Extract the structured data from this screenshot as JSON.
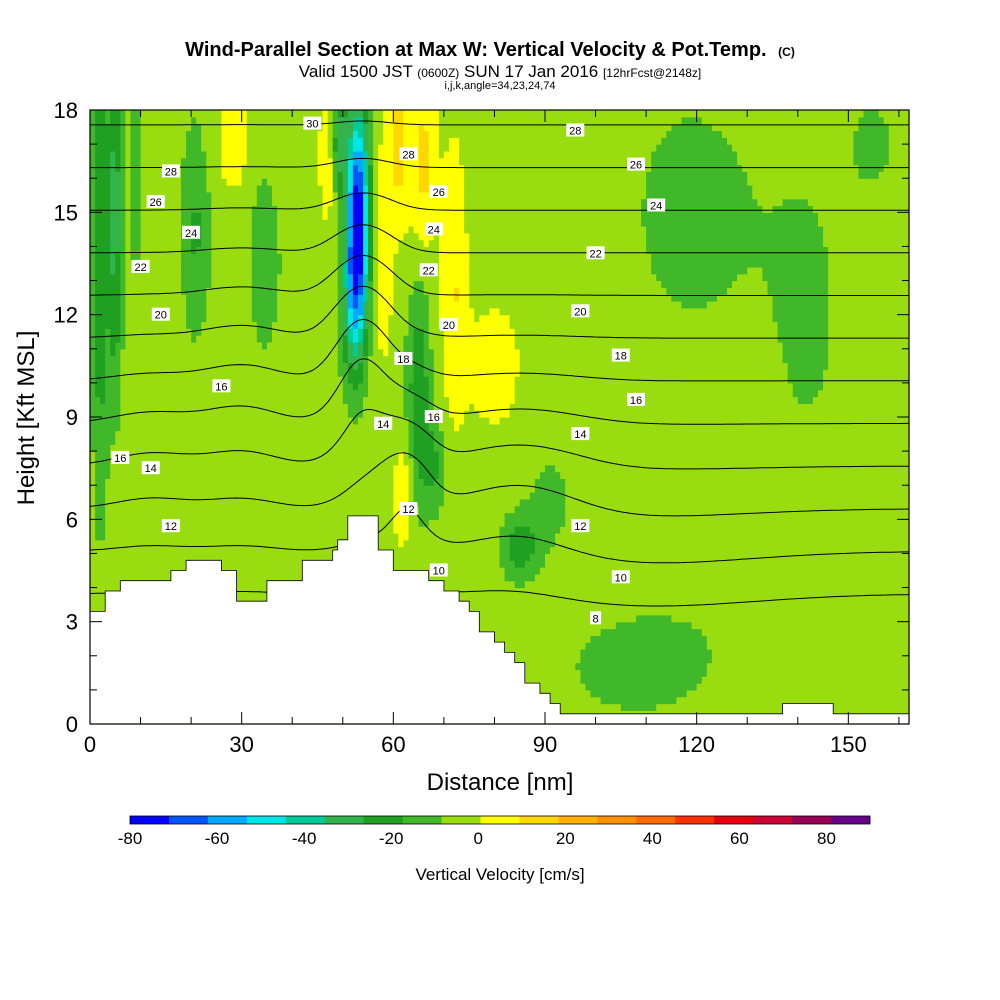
{
  "title": {
    "main": "Wind-Parallel Section at Max W: Vertical Velocity & Pot.Temp.",
    "unit": "(C)",
    "valid_a": "Valid 1500 JST",
    "valid_b": "(0600Z)",
    "valid_c": "SUN 17 Jan 2016",
    "valid_d": "[12hrFcst@2148z]",
    "indices": "i,j,k,angle=34,23,24,74"
  },
  "colors": {
    "background": "#ffffff",
    "terrain": "#ffffff",
    "contour": "#000000",
    "frame": "#000000"
  },
  "chart_data": {
    "type": "heatmap",
    "xlabel": "Distance [nm]",
    "ylabel": "Height [Kft MSL]",
    "xlim": [
      0,
      162
    ],
    "ylim": [
      0,
      18
    ],
    "xticks": [
      0,
      30,
      60,
      90,
      120,
      150
    ],
    "xtick_labels": [
      "0",
      "30",
      "60",
      "90",
      "120",
      "150"
    ],
    "yticks": [
      0,
      3,
      6,
      9,
      12,
      15,
      18
    ],
    "ytick_labels": [
      "0",
      "3",
      "6",
      "9",
      "12",
      "15",
      "18"
    ],
    "colorbar": {
      "label": "Vertical Velocity [cm/s]",
      "min": -80,
      "max": 90,
      "step": 10,
      "tick_values": [
        -80,
        -60,
        -40,
        -20,
        0,
        20,
        40,
        60,
        80
      ],
      "tick_labels": [
        "-80",
        "-60",
        "-40",
        "-20",
        "0",
        "20",
        "40",
        "60",
        "80"
      ],
      "colors": [
        "#0000ff",
        "#0055ff",
        "#00aaff",
        "#00e5e5",
        "#00cc99",
        "#33b34d",
        "#20a020",
        "#40b82a",
        "#99dd11",
        "#ffff00",
        "#ffd700",
        "#ffb000",
        "#ff9000",
        "#ff6a00",
        "#ff3000",
        "#e60010",
        "#cc0033",
        "#990055",
        "#660088"
      ]
    },
    "terrain_profile": [
      [
        0,
        3.3
      ],
      [
        3,
        3.9
      ],
      [
        6,
        4.2
      ],
      [
        16,
        4.5
      ],
      [
        19,
        4.8
      ],
      [
        26,
        4.5
      ],
      [
        29,
        3.6
      ],
      [
        35,
        4.2
      ],
      [
        42,
        4.8
      ],
      [
        48,
        5.1
      ],
      [
        49,
        5.4
      ],
      [
        51,
        6.1
      ],
      [
        55,
        6.1
      ],
      [
        57,
        5.1
      ],
      [
        60,
        4.5
      ],
      [
        67,
        4.2
      ],
      [
        70,
        3.9
      ],
      [
        73,
        3.6
      ],
      [
        75,
        3.3
      ],
      [
        77,
        2.7
      ],
      [
        80,
        2.4
      ],
      [
        82,
        2.1
      ],
      [
        84,
        1.8
      ],
      [
        86,
        1.2
      ],
      [
        89,
        0.9
      ],
      [
        91,
        0.6
      ],
      [
        93,
        0.3
      ],
      [
        135,
        0.3
      ],
      [
        137,
        0.6
      ],
      [
        145,
        0.6
      ],
      [
        147,
        0.3
      ],
      [
        162,
        0.3
      ]
    ],
    "w_field": {
      "background": 5,
      "features": [
        {
          "x": 2,
          "y": 14,
          "sx": 1.6,
          "sy": 7,
          "amp": -25
        },
        {
          "x": 5,
          "y": 15,
          "sx": 1.4,
          "sy": 5,
          "amp": -30
        },
        {
          "x": 9,
          "y": 16,
          "sx": 1.3,
          "sy": 2.5,
          "amp": -14
        },
        {
          "x": 21,
          "y": 14.5,
          "sx": 3,
          "sy": 3.5,
          "amp": -17
        },
        {
          "x": 34,
          "y": 14,
          "sx": 3,
          "sy": 4,
          "amp": -12
        },
        {
          "x": 53,
          "y": 15,
          "sx": 2.1,
          "sy": 3.2,
          "amp": -78
        },
        {
          "x": 52,
          "y": 12.5,
          "sx": 2.4,
          "sy": 2.4,
          "amp": -35
        },
        {
          "x": 49.5,
          "y": 17,
          "sx": 1.6,
          "sy": 1.5,
          "amp": -30
        },
        {
          "x": 65,
          "y": 9.8,
          "sx": 2.2,
          "sy": 3,
          "amp": -24
        },
        {
          "x": 68,
          "y": 7.6,
          "sx": 2.5,
          "sy": 1.4,
          "amp": -16
        },
        {
          "x": 85,
          "y": 5.2,
          "sx": 3.5,
          "sy": 0.9,
          "amp": -23
        },
        {
          "x": 91,
          "y": 6.5,
          "sx": 5,
          "sy": 1.5,
          "amp": -8
        },
        {
          "x": 108,
          "y": 1.6,
          "sx": 14,
          "sy": 1.4,
          "amp": -9
        },
        {
          "x": 119,
          "y": 15,
          "sx": 14,
          "sy": 4,
          "amp": -8
        },
        {
          "x": 142,
          "y": 12,
          "sx": 10,
          "sy": 6,
          "amp": -6
        },
        {
          "x": 155,
          "y": 17,
          "sx": 5,
          "sy": 1.5,
          "amp": -7
        },
        {
          "x": 40,
          "y": 13,
          "sx": 5,
          "sy": 3,
          "amp": -4
        },
        {
          "x": 120,
          "y": 3,
          "sx": 20,
          "sy": 2,
          "amp": -3
        },
        {
          "x": 61,
          "y": 17,
          "sx": 2.5,
          "sy": 2.5,
          "amp": 18
        },
        {
          "x": 66,
          "y": 16.5,
          "sx": 2.5,
          "sy": 2.5,
          "amp": 18
        },
        {
          "x": 72,
          "y": 13,
          "sx": 2.5,
          "sy": 4,
          "amp": 15
        },
        {
          "x": 58,
          "y": 13.5,
          "sx": 1.8,
          "sy": 3,
          "amp": 12
        },
        {
          "x": 47,
          "y": 16.5,
          "sx": 1.8,
          "sy": 2,
          "amp": 12
        },
        {
          "x": 80,
          "y": 10.5,
          "sx": 6,
          "sy": 2.2,
          "amp": 9
        },
        {
          "x": 62,
          "y": 6.7,
          "sx": 2,
          "sy": 1.5,
          "amp": 14
        },
        {
          "x": 30,
          "y": 17,
          "sx": 8,
          "sy": 2,
          "amp": 8
        },
        {
          "x": 38,
          "y": 7.5,
          "sx": 8,
          "sy": 1.5,
          "amp": 4
        },
        {
          "x": 95,
          "y": 14,
          "sx": 6,
          "sy": 3,
          "amp": 4
        },
        {
          "x": 28,
          "y": 11,
          "sx": 12,
          "sy": 3,
          "amp": 3
        },
        {
          "x": 140,
          "y": 4,
          "sx": 10,
          "sy": 2,
          "amp": 3
        }
      ]
    },
    "theta_contours": [
      8,
      10,
      12,
      14,
      16,
      18,
      20,
      22,
      24,
      26,
      28,
      30
    ],
    "theta_field": {
      "base": 1.9,
      "lapse": 1.6,
      "waves": [
        {
          "x": 54,
          "y": 11,
          "sx": 7,
          "sy": 4,
          "amp": -3.0
        },
        {
          "x": 63,
          "y": 7.5,
          "sx": 6,
          "sy": 2.5,
          "amp": -2.2
        },
        {
          "x": 85,
          "y": 7,
          "sx": 15,
          "sy": 3,
          "amp": -1.2
        },
        {
          "x": 12,
          "y": 8,
          "sx": 10,
          "sy": 3,
          "amp": -0.6
        },
        {
          "x": 30,
          "y": 9.5,
          "sx": 10,
          "sy": 4,
          "amp": -0.8
        },
        {
          "x": 110,
          "y": 4,
          "sx": 30,
          "sy": 3,
          "amp": 0.6
        }
      ]
    },
    "contour_labels": [
      {
        "x": 44,
        "y": 17.6,
        "text": "30"
      },
      {
        "x": 16,
        "y": 16.2,
        "text": "28"
      },
      {
        "x": 13,
        "y": 15.3,
        "text": "26"
      },
      {
        "x": 20,
        "y": 14.4,
        "text": "24"
      },
      {
        "x": 10,
        "y": 13.4,
        "text": "22"
      },
      {
        "x": 14,
        "y": 12.0,
        "text": "20"
      },
      {
        "x": 63,
        "y": 16.7,
        "text": "28"
      },
      {
        "x": 69,
        "y": 15.6,
        "text": "26"
      },
      {
        "x": 68,
        "y": 14.5,
        "text": "24"
      },
      {
        "x": 67,
        "y": 13.3,
        "text": "22"
      },
      {
        "x": 71,
        "y": 11.7,
        "text": "20"
      },
      {
        "x": 62,
        "y": 10.7,
        "text": "18"
      },
      {
        "x": 68,
        "y": 9.0,
        "text": "16"
      },
      {
        "x": 58,
        "y": 8.8,
        "text": "14"
      },
      {
        "x": 26,
        "y": 9.9,
        "text": "16"
      },
      {
        "x": 6,
        "y": 7.8,
        "text": "16"
      },
      {
        "x": 12,
        "y": 7.5,
        "text": "14"
      },
      {
        "x": 16,
        "y": 5.8,
        "text": "12"
      },
      {
        "x": 63,
        "y": 6.3,
        "text": "12"
      },
      {
        "x": 69,
        "y": 4.5,
        "text": "10"
      },
      {
        "x": 96,
        "y": 17.4,
        "text": "28"
      },
      {
        "x": 108,
        "y": 16.4,
        "text": "26"
      },
      {
        "x": 112,
        "y": 15.2,
        "text": "24"
      },
      {
        "x": 100,
        "y": 13.8,
        "text": "22"
      },
      {
        "x": 97,
        "y": 12.1,
        "text": "20"
      },
      {
        "x": 105,
        "y": 10.8,
        "text": "18"
      },
      {
        "x": 108,
        "y": 9.5,
        "text": "16"
      },
      {
        "x": 97,
        "y": 8.5,
        "text": "14"
      },
      {
        "x": 97,
        "y": 5.8,
        "text": "12"
      },
      {
        "x": 105,
        "y": 4.3,
        "text": "10"
      },
      {
        "x": 100,
        "y": 3.1,
        "text": "8"
      }
    ]
  }
}
